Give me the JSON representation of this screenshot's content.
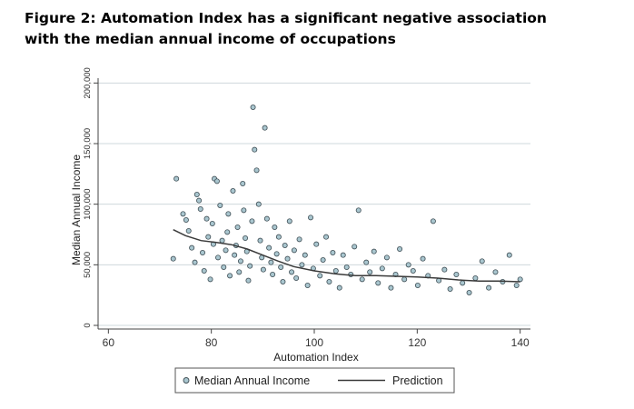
{
  "figure": {
    "title": "Figure 2: Automation Index has a significant negative association\nwith the median annual income of occupations"
  },
  "chart_data": {
    "type": "scatter",
    "title": "Figure 2: Automation Index has a significant negative association with the median annual income of occupations",
    "xlabel": "Automation Index",
    "ylabel": "Median Annual Income",
    "xlim": [
      58,
      142
    ],
    "ylim": [
      -3000,
      204000
    ],
    "x_ticks": [
      60,
      80,
      100,
      120,
      140
    ],
    "x_tick_labels": [
      "60",
      "80",
      "100",
      "120",
      "140"
    ],
    "y_ticks": [
      0,
      50000,
      100000,
      150000,
      200000
    ],
    "y_tick_labels": [
      "0",
      "50,000",
      "100,000",
      "150,000",
      "200,000"
    ],
    "grid": "horizontal",
    "legend_position": "bottom",
    "marker_color": "#a9c6cf",
    "marker_edge": "#3f4e55",
    "line_color": "#3a3a3a",
    "series": [
      {
        "name": "Median Annual Income",
        "kind": "scatter",
        "points": [
          [
            72.6,
            55000
          ],
          [
            73.2,
            121000
          ],
          [
            74.5,
            92000
          ],
          [
            75.1,
            87000
          ],
          [
            75.6,
            78000
          ],
          [
            76.2,
            64000
          ],
          [
            76.8,
            52000
          ],
          [
            77.2,
            108000
          ],
          [
            77.6,
            103000
          ],
          [
            77.9,
            96000
          ],
          [
            78.3,
            60000
          ],
          [
            78.6,
            45000
          ],
          [
            79.1,
            88000
          ],
          [
            79.4,
            73000
          ],
          [
            79.8,
            38000
          ],
          [
            80.2,
            84000
          ],
          [
            80.4,
            67000
          ],
          [
            80.6,
            121000
          ],
          [
            81.1,
            119000
          ],
          [
            81.3,
            56000
          ],
          [
            81.7,
            99000
          ],
          [
            82.1,
            70000
          ],
          [
            82.4,
            48000
          ],
          [
            82.8,
            62000
          ],
          [
            83.1,
            77000
          ],
          [
            83.3,
            92000
          ],
          [
            83.6,
            41000
          ],
          [
            84.2,
            111000
          ],
          [
            84.5,
            58000
          ],
          [
            84.8,
            66000
          ],
          [
            85.1,
            81000
          ],
          [
            85.4,
            44000
          ],
          [
            85.7,
            53000
          ],
          [
            86.1,
            117000
          ],
          [
            86.3,
            95000
          ],
          [
            86.6,
            72000
          ],
          [
            86.9,
            61000
          ],
          [
            87.2,
            37000
          ],
          [
            87.5,
            49000
          ],
          [
            87.9,
            86000
          ],
          [
            88.1,
            180000
          ],
          [
            88.4,
            145000
          ],
          [
            88.8,
            128000
          ],
          [
            89.2,
            100000
          ],
          [
            89.5,
            70000
          ],
          [
            89.8,
            56000
          ],
          [
            90.1,
            46000
          ],
          [
            90.4,
            163000
          ],
          [
            90.8,
            88000
          ],
          [
            91.2,
            64000
          ],
          [
            91.6,
            52000
          ],
          [
            91.9,
            42000
          ],
          [
            92.3,
            81000
          ],
          [
            92.7,
            59000
          ],
          [
            93.1,
            73000
          ],
          [
            93.5,
            48000
          ],
          [
            93.9,
            36000
          ],
          [
            94.3,
            66000
          ],
          [
            94.8,
            55000
          ],
          [
            95.2,
            86000
          ],
          [
            95.6,
            44000
          ],
          [
            96.1,
            62000
          ],
          [
            96.5,
            39000
          ],
          [
            97.1,
            71000
          ],
          [
            97.6,
            50000
          ],
          [
            98.2,
            58000
          ],
          [
            98.7,
            33000
          ],
          [
            99.3,
            89000
          ],
          [
            99.8,
            47000
          ],
          [
            100.4,
            67000
          ],
          [
            101.1,
            41000
          ],
          [
            101.7,
            54000
          ],
          [
            102.3,
            73000
          ],
          [
            102.9,
            36000
          ],
          [
            103.6,
            60000
          ],
          [
            104.2,
            45000
          ],
          [
            104.9,
            31000
          ],
          [
            105.6,
            58000
          ],
          [
            106.3,
            48000
          ],
          [
            107.1,
            42000
          ],
          [
            107.8,
            65000
          ],
          [
            108.6,
            95000
          ],
          [
            109.3,
            38000
          ],
          [
            110.1,
            52000
          ],
          [
            110.8,
            44000
          ],
          [
            111.6,
            61000
          ],
          [
            112.4,
            35000
          ],
          [
            113.2,
            47000
          ],
          [
            114.1,
            56000
          ],
          [
            114.9,
            31000
          ],
          [
            115.8,
            42000
          ],
          [
            116.6,
            63000
          ],
          [
            117.5,
            38000
          ],
          [
            118.3,
            50000
          ],
          [
            119.2,
            45000
          ],
          [
            120.1,
            33000
          ],
          [
            121.1,
            55000
          ],
          [
            122.1,
            41000
          ],
          [
            123.1,
            86000
          ],
          [
            124.2,
            37000
          ],
          [
            125.3,
            46000
          ],
          [
            126.4,
            30000
          ],
          [
            127.6,
            42000
          ],
          [
            128.8,
            35000
          ],
          [
            130.1,
            27000
          ],
          [
            131.3,
            39000
          ],
          [
            132.6,
            53000
          ],
          [
            133.9,
            31000
          ],
          [
            135.2,
            44000
          ],
          [
            136.6,
            36000
          ],
          [
            137.9,
            58000
          ],
          [
            139.3,
            33000
          ],
          [
            140.0,
            38000
          ]
        ]
      },
      {
        "name": "Prediction",
        "kind": "line",
        "points": [
          [
            72.6,
            79000
          ],
          [
            75,
            74000
          ],
          [
            78,
            70000
          ],
          [
            81,
            68500
          ],
          [
            84,
            66500
          ],
          [
            87,
            63000
          ],
          [
            90,
            58000
          ],
          [
            93,
            53000
          ],
          [
            96,
            48500
          ],
          [
            100,
            45000
          ],
          [
            104,
            42500
          ],
          [
            108,
            41000
          ],
          [
            112,
            41000
          ],
          [
            116,
            40500
          ],
          [
            120,
            40000
          ],
          [
            124,
            39000
          ],
          [
            128,
            37500
          ],
          [
            132,
            36500
          ],
          [
            136,
            36500
          ],
          [
            140,
            36000
          ]
        ]
      }
    ],
    "legend": [
      {
        "label": "Median Annual Income",
        "symbol": "circle"
      },
      {
        "label": "Prediction",
        "symbol": "line"
      }
    ]
  }
}
